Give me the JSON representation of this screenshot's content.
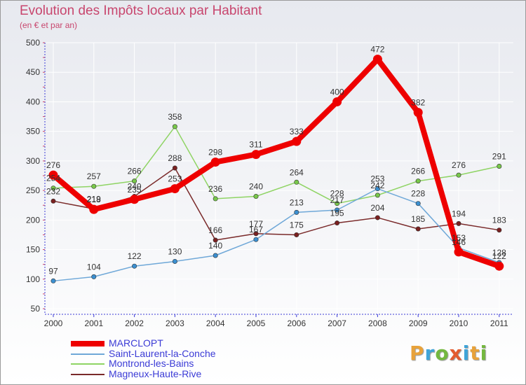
{
  "title": "Evolution des Impôts locaux par Habitant",
  "subtitle": "(en € et par an)",
  "logo": "Proxiti",
  "colors": {
    "title": "#c8466e",
    "axis": "#3b3bd6",
    "grid": "#ffffff",
    "logo_letters": [
      "#e8a23a",
      "#3fa4d8",
      "#74b83f",
      "#e35b2e",
      "#3fa4d8",
      "#e8a23a",
      "#74b83f"
    ]
  },
  "chart_data": {
    "type": "line",
    "title": "Evolution des Impôts locaux par Habitant",
    "subtitle": "(en € et par an)",
    "xlabel": "",
    "ylabel": "",
    "ylim": [
      50,
      500
    ],
    "yticks": [
      50,
      100,
      150,
      200,
      250,
      300,
      350,
      400,
      450,
      500
    ],
    "categories": [
      "2000",
      "2001",
      "2002",
      "2003",
      "2004",
      "2005",
      "2006",
      "2007",
      "2008",
      "2009",
      "2010",
      "2011"
    ],
    "series": [
      {
        "name": "Magneux-Haute-Rive",
        "color": "#7a2a2a",
        "marker": "#7a2020",
        "values": [
          232,
          219,
          240,
          288,
          166,
          177,
          175,
          195,
          204,
          185,
          194,
          183
        ]
      },
      {
        "name": "Montrond-les-Bains",
        "color": "#8fd464",
        "marker": "#78c84a",
        "values": [
          254,
          257,
          266,
          358,
          236,
          240,
          264,
          228,
          242,
          266,
          276,
          291
        ]
      },
      {
        "name": "Saint-Laurent-la-Conche",
        "color": "#6fa8d8",
        "marker": "#3b8fd0",
        "values": [
          97,
          104,
          122,
          130,
          140,
          167,
          213,
          217,
          253,
          228,
          153,
          128
        ]
      },
      {
        "name": "MARCLOPT",
        "color": "#ee0000",
        "marker": "#ee0000",
        "values": [
          276,
          218,
          235,
          253,
          298,
          311,
          333,
          400,
          472,
          382,
          146,
          122
        ]
      }
    ],
    "legend": [
      "MARCLOPT",
      "Saint-Laurent-la-Conche",
      "Montrond-les-Bains",
      "Magneux-Haute-Rive"
    ],
    "legend_position": "bottom-left"
  }
}
